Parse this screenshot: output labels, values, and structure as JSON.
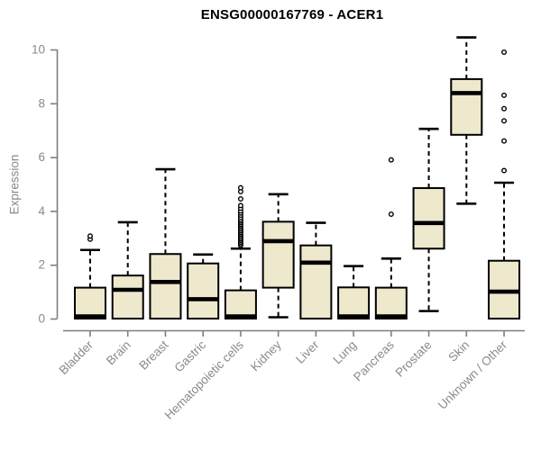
{
  "chart_data": {
    "type": "boxplot",
    "title": "ENSG00000167769 - ACER1",
    "xlabel": "",
    "ylabel": "Expression",
    "ylim": [
      0,
      10
    ],
    "yticks": [
      0,
      2,
      4,
      6,
      8,
      10
    ],
    "grid": false,
    "legend": "none",
    "categories": [
      "Bladder",
      "Brain",
      "Breast",
      "Gastric",
      "Hematopoietic cells",
      "Kidney",
      "Liver",
      "Lung",
      "Pancreas",
      "Prostate",
      "Skin",
      "Unknown / Other"
    ],
    "boxes": [
      {
        "label": "Bladder",
        "whisker_low": null,
        "q1": 0,
        "median": 0.07,
        "q3": 1.15,
        "whisker_high": 2.55,
        "outliers": [
          2.95,
          3.07
        ]
      },
      {
        "label": "Brain",
        "whisker_low": null,
        "q1": 0,
        "median": 1.07,
        "q3": 1.6,
        "whisker_high": 3.58,
        "outliers": []
      },
      {
        "label": "Breast",
        "whisker_low": null,
        "q1": 0,
        "median": 1.36,
        "q3": 2.4,
        "whisker_high": 5.55,
        "outliers": []
      },
      {
        "label": "Gastric",
        "whisker_low": null,
        "q1": 0,
        "median": 0.72,
        "q3": 2.05,
        "whisker_high": 2.38,
        "outliers": []
      },
      {
        "label": "Hematopoietic cells",
        "whisker_low": null,
        "q1": 0,
        "median": 0.07,
        "q3": 1.05,
        "whisker_high": 2.6,
        "outliers": [
          2.72,
          2.78,
          2.84,
          2.9,
          2.96,
          3.02,
          3.08,
          3.14,
          3.2,
          3.26,
          3.32,
          3.38,
          3.44,
          3.5,
          3.56,
          3.62,
          3.68,
          3.76,
          3.84,
          3.92,
          4.0,
          4.1,
          4.2,
          4.45,
          4.72,
          4.86
        ]
      },
      {
        "label": "Kidney",
        "whisker_low": 0.05,
        "q1": 1.15,
        "median": 2.88,
        "q3": 3.6,
        "whisker_high": 4.62,
        "outliers": []
      },
      {
        "label": "Liver",
        "whisker_low": null,
        "q1": 0,
        "median": 2.08,
        "q3": 2.72,
        "whisker_high": 3.56,
        "outliers": []
      },
      {
        "label": "Lung",
        "whisker_low": null,
        "q1": 0,
        "median": 0.07,
        "q3": 1.16,
        "whisker_high": 1.95,
        "outliers": []
      },
      {
        "label": "Pancreas",
        "whisker_low": null,
        "q1": 0,
        "median": 0.07,
        "q3": 1.15,
        "whisker_high": 2.23,
        "outliers": [
          3.88,
          5.9
        ]
      },
      {
        "label": "Prostate",
        "whisker_low": 0.28,
        "q1": 2.6,
        "median": 3.55,
        "q3": 4.85,
        "whisker_high": 7.05,
        "outliers": []
      },
      {
        "label": "Skin",
        "whisker_low": 4.27,
        "q1": 6.83,
        "median": 8.38,
        "q3": 8.9,
        "whisker_high": 10.45,
        "outliers": []
      },
      {
        "label": "Unknown / Other",
        "whisker_low": null,
        "q1": 0,
        "median": 1.0,
        "q3": 2.15,
        "whisker_high": 5.05,
        "outliers": [
          5.5,
          6.6,
          7.35,
          7.8,
          8.3,
          9.9
        ]
      }
    ],
    "colors": {
      "box_fill": "#eee8cd",
      "box_border": "#000000",
      "median": "#000000",
      "whisker": "#000000",
      "outlier_stroke": "#000000",
      "axis": "#7f7f7f",
      "tick_text": "#8a8a8a",
      "title_text": "#000000"
    }
  }
}
